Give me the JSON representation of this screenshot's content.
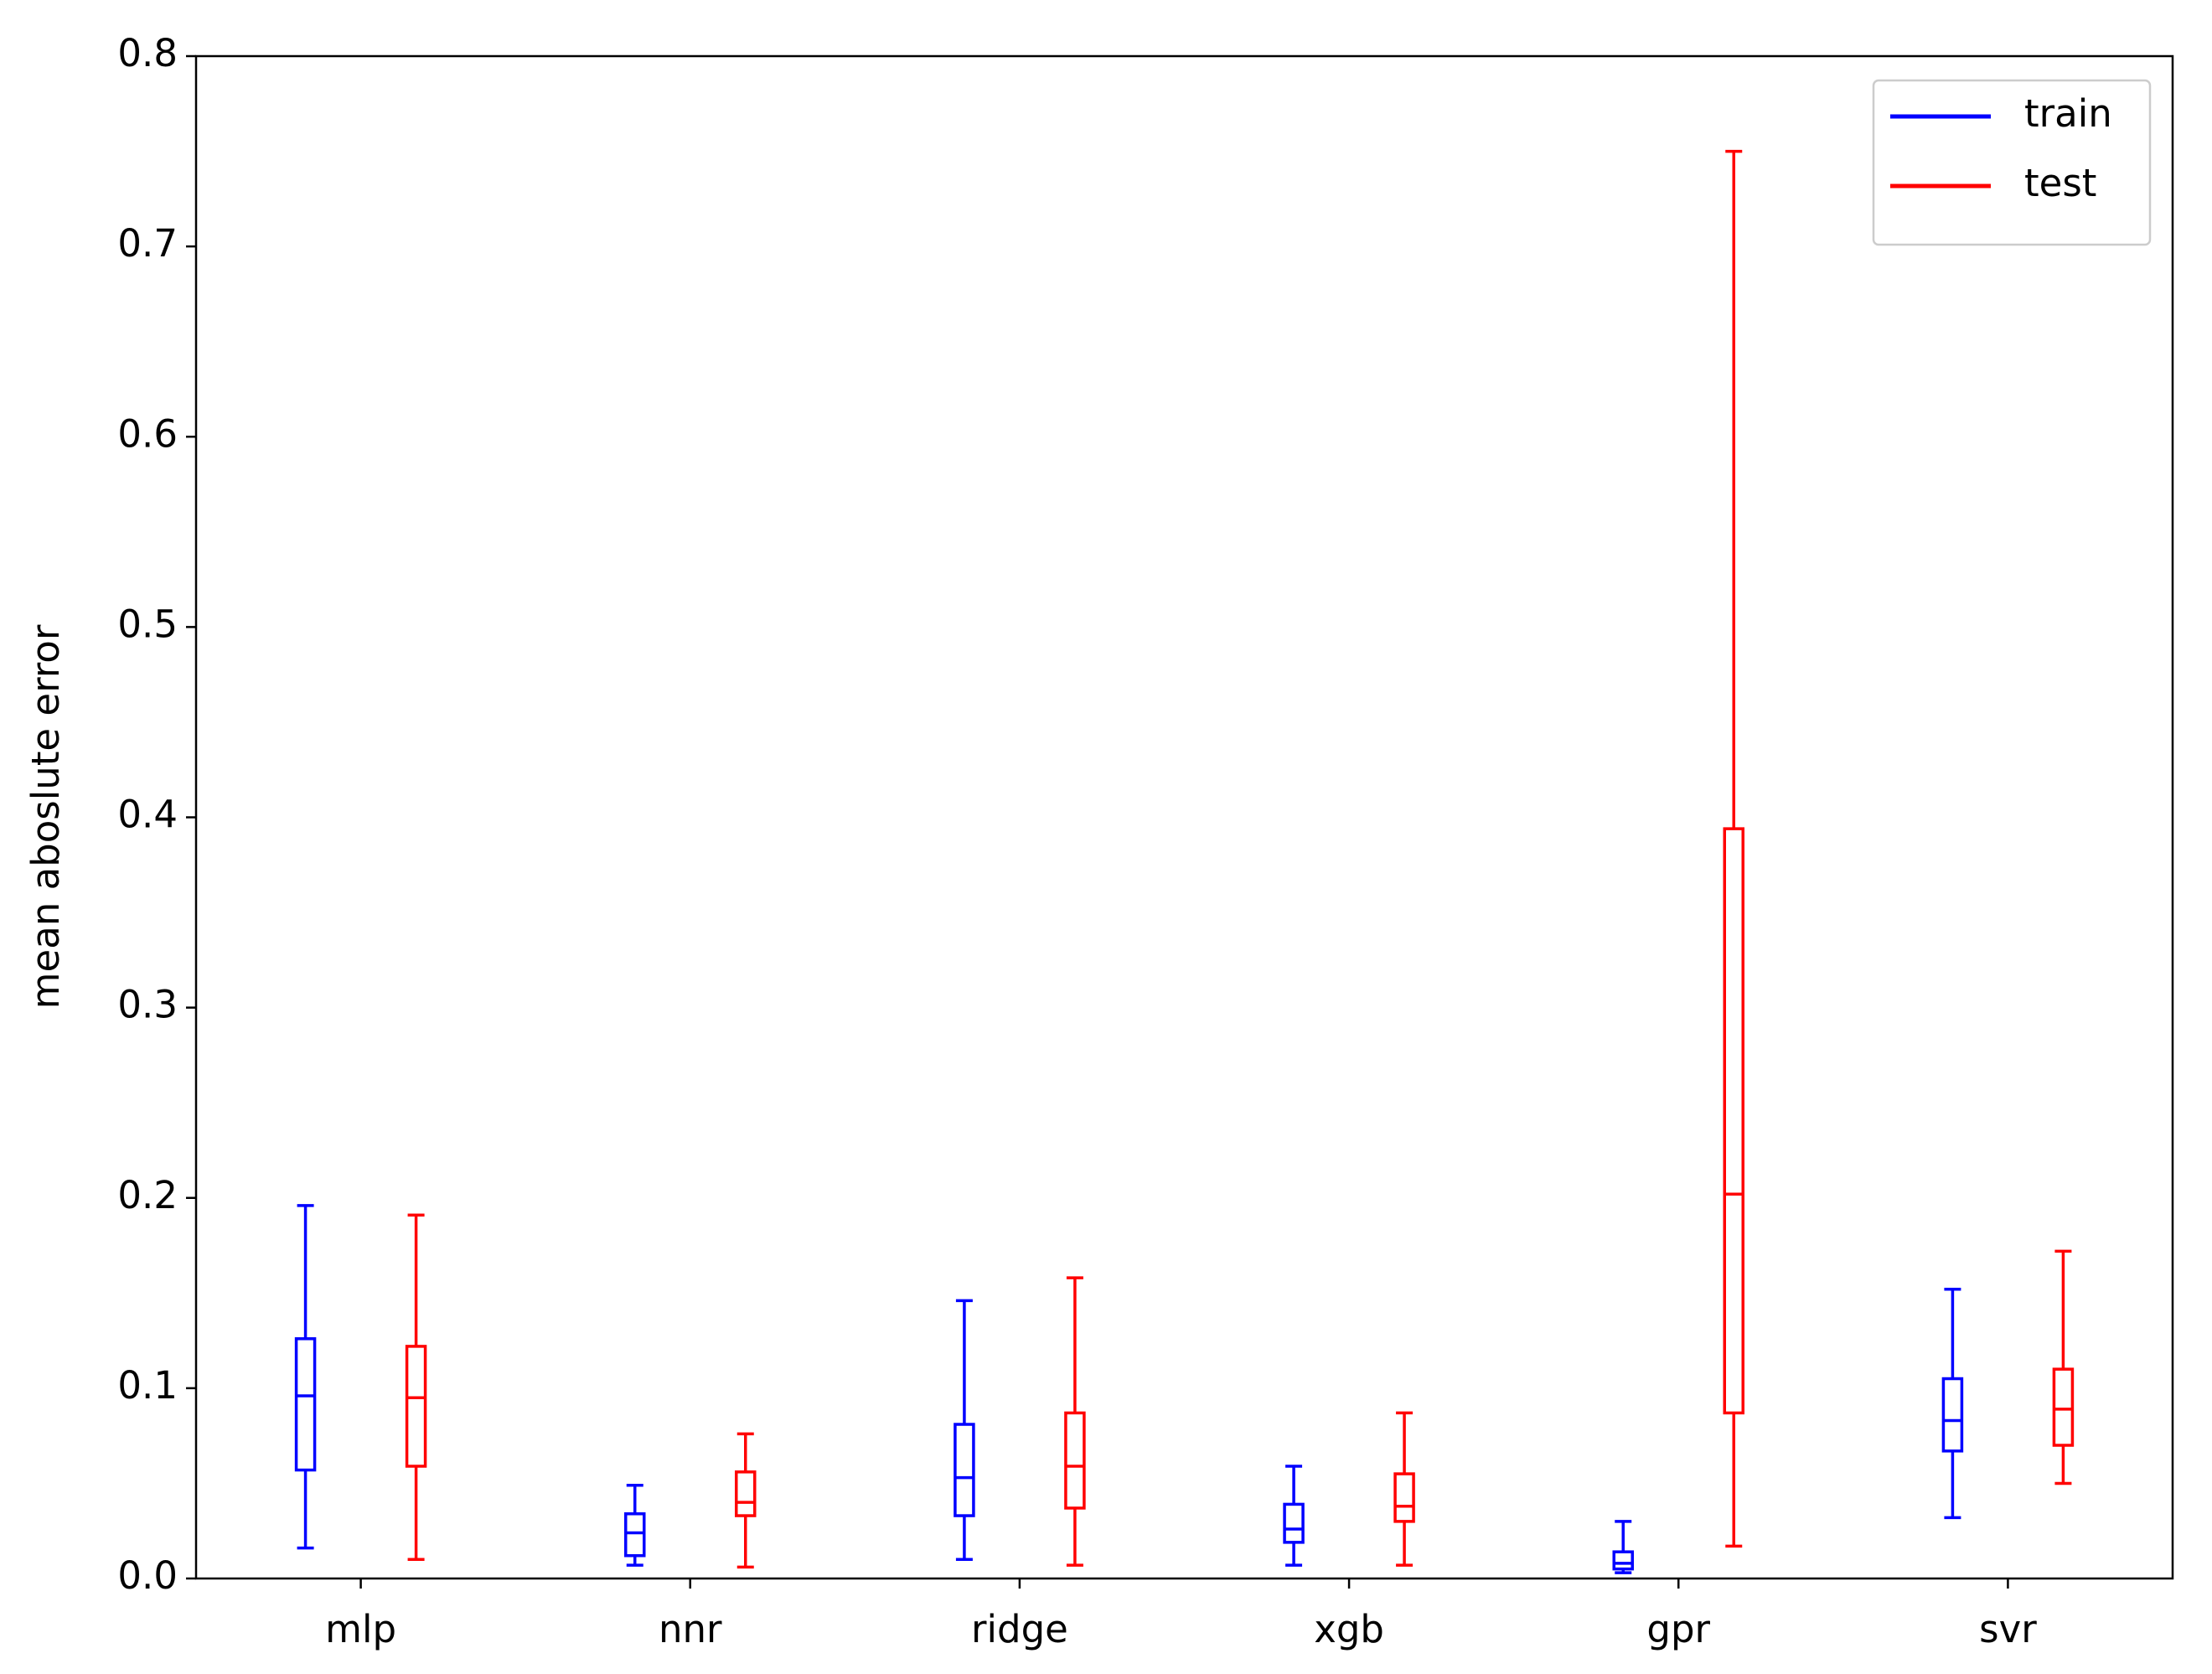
{
  "chart_data": {
    "type": "box",
    "y_label": "mean aboslute error",
    "categories": [
      "mlp",
      "nnr",
      "ridge",
      "xgb",
      "gpr",
      "svr"
    ],
    "series": [
      {
        "name": "train",
        "color": "#0000ff",
        "whislo": [
          0.016,
          0.007,
          0.01,
          0.007,
          0.003,
          0.032
        ],
        "q1": [
          0.057,
          0.012,
          0.033,
          0.019,
          0.005,
          0.067
        ],
        "med": [
          0.096,
          0.024,
          0.053,
          0.026,
          0.008,
          0.083
        ],
        "q3": [
          0.126,
          0.034,
          0.081,
          0.039,
          0.014,
          0.105
        ],
        "whishi": [
          0.196,
          0.049,
          0.146,
          0.059,
          0.03,
          0.152
        ]
      },
      {
        "name": "test",
        "color": "#ff0000",
        "whislo": [
          0.01,
          0.006,
          0.007,
          0.007,
          0.017,
          0.05
        ],
        "q1": [
          0.059,
          0.033,
          0.037,
          0.03,
          0.087,
          0.07
        ],
        "med": [
          0.095,
          0.04,
          0.059,
          0.038,
          0.202,
          0.089
        ],
        "q3": [
          0.122,
          0.056,
          0.087,
          0.055,
          0.394,
          0.11
        ],
        "whishi": [
          0.191,
          0.076,
          0.158,
          0.087,
          0.75,
          0.172
        ]
      }
    ],
    "ylim": [
      0,
      0.8
    ],
    "yticks": [
      {
        "value": 0,
        "label": "0.0"
      },
      0.1,
      0.2,
      0.3,
      0.4,
      0.5,
      0.6,
      0.7,
      0.8
    ],
    "legend": "upper right",
    "grid": false
  }
}
